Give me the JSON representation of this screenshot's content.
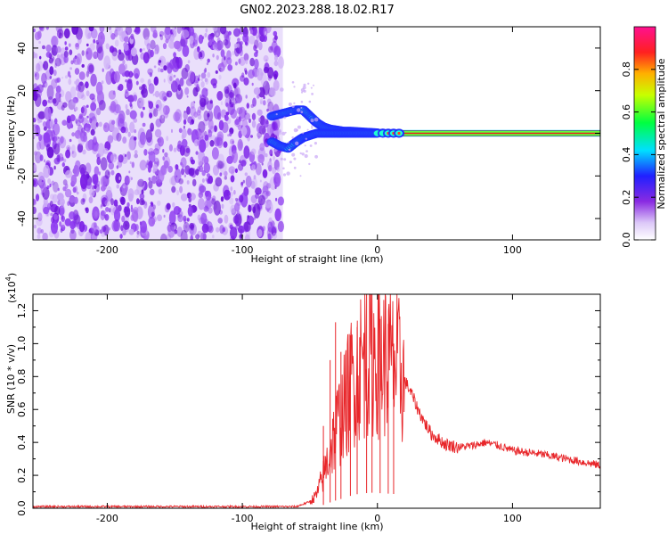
{
  "title": "GN02.2023.288.18.02.R17",
  "chart_data": [
    {
      "type": "heatmap",
      "xlabel": "Height of straight line (km)",
      "ylabel": "Frequency (Hz)",
      "xlim": [
        -255,
        165
      ],
      "ylim": [
        -50,
        50
      ],
      "xticks": [
        -200,
        -100,
        0,
        100
      ],
      "yticks": [
        -40,
        -20,
        0,
        20,
        40
      ],
      "noise_region_x": [
        -255,
        -70
      ],
      "signal_track": {
        "x": [
          -78,
          -72,
          -66,
          -60,
          -55,
          -50,
          -45,
          -40,
          -35,
          -30,
          -25,
          -20,
          -15,
          -10,
          -5,
          0,
          20,
          60,
          100,
          165
        ],
        "upper_y": [
          8,
          9,
          10,
          11,
          11,
          8,
          5,
          3,
          2,
          1.5,
          1,
          1,
          0.8,
          0.6,
          0.4,
          0.2,
          0,
          0,
          0,
          0
        ],
        "lower_y": [
          -4,
          -6,
          -7,
          -4,
          -2,
          -1,
          0,
          0,
          0,
          0,
          0,
          0,
          0,
          0,
          0,
          0,
          0,
          0,
          0,
          0
        ]
      },
      "colorbar": {
        "label": "Normalized spectral amplitude",
        "range": [
          0.0,
          1.0
        ],
        "ticks": [
          0.0,
          0.2,
          0.4,
          0.6,
          0.8
        ],
        "tick_labels": [
          "0.0",
          "0.2",
          "0.4",
          "0.6",
          "0.8"
        ]
      }
    },
    {
      "type": "line",
      "xlabel": "Height of straight line (km)",
      "ylabel": "SNR (10 * v/v)",
      "yscale_label": "(x10",
      "yscale_exp": "4",
      "xlim": [
        -255,
        165
      ],
      "ylim": [
        0.0,
        1.3
      ],
      "xticks": [
        -200,
        -100,
        0,
        100
      ],
      "yticks": [
        0.0,
        0.2,
        0.4,
        0.6,
        0.8,
        1.0,
        1.2
      ],
      "ytick_labels": [
        "0.0",
        "0.2",
        "0.4",
        "0.6",
        "0.8",
        "1.0",
        "1.2"
      ],
      "color": "#e8262a",
      "series": [
        {
          "x": [
            -255,
            -200,
            -150,
            -100,
            -60,
            -50,
            -45,
            -40,
            -35,
            -30,
            -25,
            -20,
            -15,
            -10,
            -5,
            0,
            5,
            10,
            15,
            20,
            25,
            30,
            35,
            40,
            50,
            60,
            70,
            80,
            90,
            100,
            120,
            140,
            165
          ],
          "values": [
            0.01,
            0.01,
            0.01,
            0.01,
            0.01,
            0.04,
            0.08,
            0.2,
            0.35,
            0.5,
            0.6,
            0.75,
            0.85,
            0.9,
            0.95,
            0.92,
            0.9,
            0.88,
            0.85,
            0.78,
            0.7,
            0.6,
            0.52,
            0.45,
            0.39,
            0.37,
            0.38,
            0.4,
            0.38,
            0.35,
            0.33,
            0.3,
            0.26
          ]
        }
      ],
      "spikes": [
        {
          "x": -40,
          "y": 0.5
        },
        {
          "x": -35,
          "y": 0.9
        },
        {
          "x": -31,
          "y": 1.13
        },
        {
          "x": -27,
          "y": 0.95
        },
        {
          "x": -20,
          "y": 1.05
        },
        {
          "x": -15,
          "y": 1.1
        },
        {
          "x": -8,
          "y": 1.3
        },
        {
          "x": -4,
          "y": 1.2
        },
        {
          "x": 2,
          "y": 1.15
        },
        {
          "x": 8,
          "y": 1.12
        },
        {
          "x": 12,
          "y": 1.0
        }
      ]
    }
  ]
}
